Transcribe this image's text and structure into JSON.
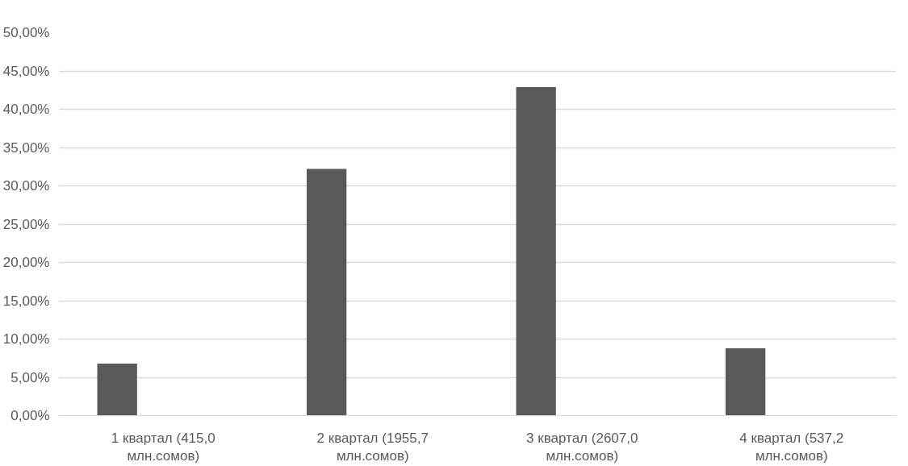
{
  "chart_data": {
    "type": "bar",
    "categories": [
      "1 квартал (415,0 млн.сомов)",
      "2 квартал (1955,7 млн.сомов)",
      "3 квартал (2607,0 млн.сомов)",
      "4 квартал (537,2 млн.сомов)"
    ],
    "values": [
      6.8,
      32.2,
      42.9,
      8.8
    ],
    "color": "#595959",
    "ylim": [
      0,
      50
    ],
    "yticks": [
      {
        "value": 0,
        "label": "0,00%"
      },
      {
        "value": 5,
        "label": "5,00%"
      },
      {
        "value": 10,
        "label": "10,00%"
      },
      {
        "value": 15,
        "label": "15,00%"
      },
      {
        "value": 20,
        "label": "20,00%"
      },
      {
        "value": 25,
        "label": "25,00%"
      },
      {
        "value": 30,
        "label": "30,00%"
      },
      {
        "value": 35,
        "label": "35,00%"
      },
      {
        "value": 40,
        "label": "40,00%"
      },
      {
        "value": 45,
        "label": "45,00%"
      },
      {
        "value": 50,
        "label": "50,00%"
      }
    ],
    "grid": "y"
  }
}
